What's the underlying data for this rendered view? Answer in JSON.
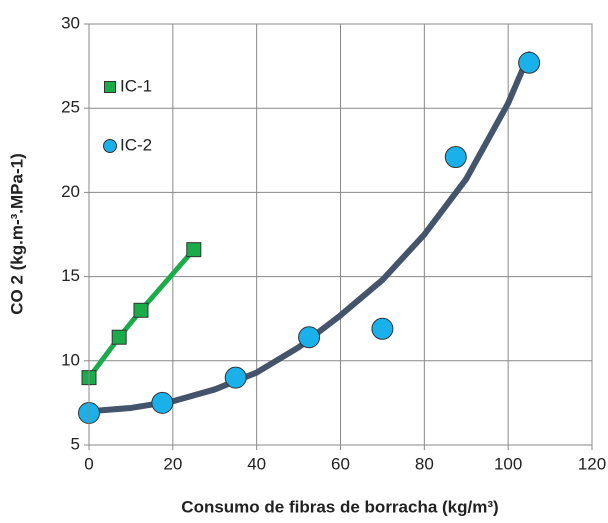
{
  "chart_data": {
    "type": "scatter",
    "xlabel": "Consumo de fibras de borracha (kg/m³)",
    "ylabel": "CO 2 (kg.m-³.MPa-1)",
    "xlim": [
      0,
      120
    ],
    "xticks": [
      0,
      20,
      40,
      60,
      80,
      100,
      120
    ],
    "ylim": [
      5,
      30
    ],
    "yticks": [
      5,
      10,
      15,
      20,
      25,
      30
    ],
    "grid": true,
    "series": [
      {
        "name": "IC-1",
        "color": "#1aab4b",
        "marker": "square",
        "line": true,
        "x": [
          0,
          7.2,
          12.4,
          25
        ],
        "values": [
          9.0,
          11.4,
          13.0,
          16.6
        ]
      },
      {
        "name": "IC-2",
        "color": "#1ab0ea",
        "marker": "circle",
        "line": false,
        "x": [
          0,
          17.5,
          35,
          52.5,
          70,
          87.5,
          105
        ],
        "values": [
          6.9,
          7.5,
          9.0,
          11.4,
          11.9,
          22.1,
          27.7
        ]
      }
    ],
    "trendline": {
      "color": "#44546a",
      "x": [
        0,
        10,
        20,
        30,
        40,
        50,
        60,
        70,
        80,
        90,
        100,
        105
      ],
      "values": [
        7.0,
        7.2,
        7.6,
        8.3,
        9.3,
        10.8,
        12.7,
        14.8,
        17.5,
        20.8,
        25.3,
        28.2
      ]
    }
  }
}
